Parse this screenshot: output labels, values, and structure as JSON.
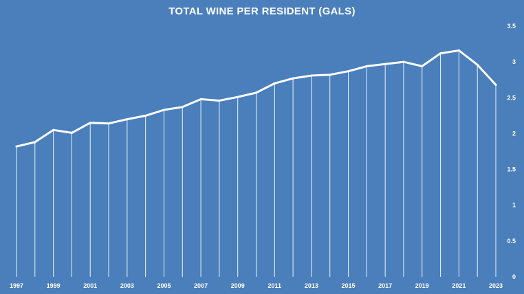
{
  "chart_data": {
    "type": "line",
    "title": "TOTAL WINE PER RESIDENT (GALS)",
    "xlabel": "",
    "ylabel": "",
    "x": [
      1997,
      1998,
      1999,
      2000,
      2001,
      2002,
      2003,
      2004,
      2005,
      2006,
      2007,
      2008,
      2009,
      2010,
      2011,
      2012,
      2013,
      2014,
      2015,
      2016,
      2017,
      2018,
      2019,
      2020,
      2021,
      2022,
      2023
    ],
    "x_tick_labels": [
      "1997",
      "1999",
      "2001",
      "2003",
      "2005",
      "2007",
      "2009",
      "2011",
      "2013",
      "2015",
      "2017",
      "2019",
      "2021",
      "2023"
    ],
    "series": [
      {
        "values": [
          1.82,
          1.88,
          2.05,
          2.01,
          2.15,
          2.14,
          2.2,
          2.25,
          2.33,
          2.37,
          2.48,
          2.46,
          2.51,
          2.57,
          2.7,
          2.77,
          2.81,
          2.82,
          2.87,
          2.94,
          2.97,
          3.0,
          2.94,
          3.12,
          3.16,
          2.96,
          2.68
        ]
      }
    ],
    "ylim": [
      0,
      3.5
    ],
    "y_ticks": [
      0,
      0.5,
      1,
      1.5,
      2,
      2.5,
      3,
      3.5
    ],
    "y_tick_labels": [
      "0",
      "0.5",
      "1",
      "1.5",
      "2",
      "2.5",
      "3",
      "3.5"
    ],
    "y_axis_position": "right",
    "drop_lines": true,
    "grid": false,
    "colors": {
      "background": "#4a7fbc",
      "line": "#ffffff",
      "text": "#ffffff"
    }
  }
}
